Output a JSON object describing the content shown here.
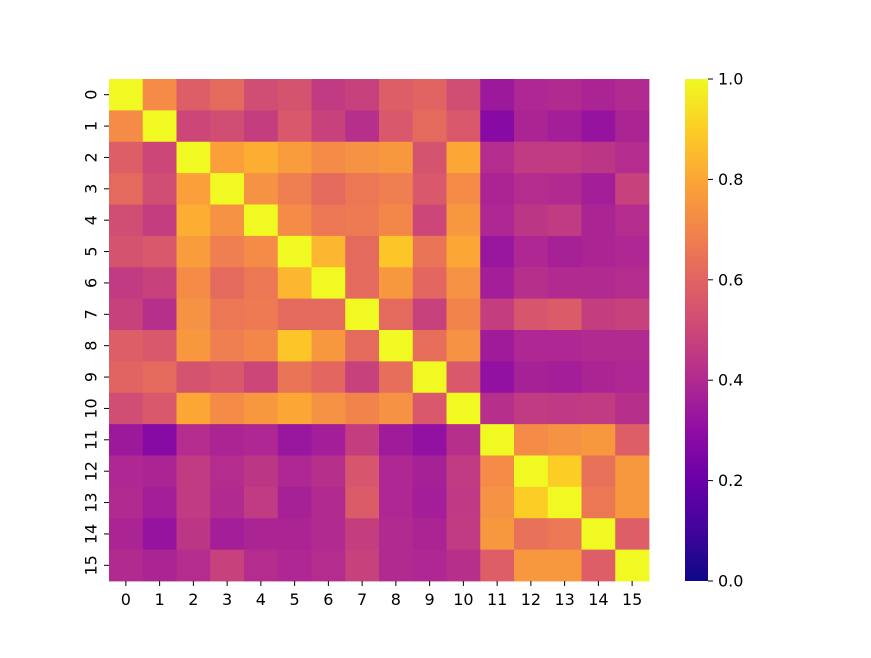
{
  "chart_data": {
    "type": "heatmap",
    "title": "",
    "xlabel": "",
    "ylabel": "",
    "x_labels": [
      "0",
      "1",
      "2",
      "3",
      "4",
      "5",
      "6",
      "7",
      "8",
      "9",
      "10",
      "11",
      "12",
      "13",
      "14",
      "15"
    ],
    "y_labels": [
      "0",
      "1",
      "2",
      "3",
      "4",
      "5",
      "6",
      "7",
      "8",
      "9",
      "10",
      "11",
      "12",
      "13",
      "14",
      "15"
    ],
    "values": [
      [
        1.0,
        0.72,
        0.58,
        0.62,
        0.52,
        0.54,
        0.46,
        0.48,
        0.58,
        0.6,
        0.52,
        0.34,
        0.39,
        0.4,
        0.38,
        0.4
      ],
      [
        0.72,
        1.0,
        0.5,
        0.52,
        0.47,
        0.56,
        0.48,
        0.42,
        0.56,
        0.62,
        0.56,
        0.28,
        0.38,
        0.36,
        0.32,
        0.38
      ],
      [
        0.58,
        0.5,
        1.0,
        0.78,
        0.82,
        0.77,
        0.72,
        0.74,
        0.76,
        0.54,
        0.8,
        0.41,
        0.46,
        0.46,
        0.44,
        0.41
      ],
      [
        0.62,
        0.52,
        0.78,
        1.0,
        0.74,
        0.68,
        0.62,
        0.66,
        0.68,
        0.56,
        0.72,
        0.38,
        0.41,
        0.4,
        0.36,
        0.48
      ],
      [
        0.52,
        0.47,
        0.82,
        0.74,
        1.0,
        0.72,
        0.66,
        0.67,
        0.71,
        0.5,
        0.76,
        0.39,
        0.44,
        0.46,
        0.38,
        0.41
      ],
      [
        0.54,
        0.56,
        0.77,
        0.68,
        0.72,
        1.0,
        0.84,
        0.62,
        0.88,
        0.65,
        0.8,
        0.33,
        0.39,
        0.37,
        0.38,
        0.39
      ],
      [
        0.46,
        0.48,
        0.72,
        0.62,
        0.66,
        0.84,
        1.0,
        0.62,
        0.76,
        0.61,
        0.74,
        0.36,
        0.42,
        0.4,
        0.4,
        0.41
      ],
      [
        0.48,
        0.42,
        0.74,
        0.66,
        0.67,
        0.62,
        0.62,
        1.0,
        0.62,
        0.48,
        0.7,
        0.47,
        0.55,
        0.57,
        0.47,
        0.48
      ],
      [
        0.58,
        0.56,
        0.76,
        0.68,
        0.71,
        0.88,
        0.76,
        0.62,
        1.0,
        0.63,
        0.74,
        0.35,
        0.39,
        0.39,
        0.4,
        0.4
      ],
      [
        0.6,
        0.62,
        0.54,
        0.56,
        0.5,
        0.65,
        0.61,
        0.48,
        0.63,
        1.0,
        0.56,
        0.31,
        0.37,
        0.36,
        0.38,
        0.39
      ],
      [
        0.52,
        0.56,
        0.8,
        0.72,
        0.76,
        0.8,
        0.74,
        0.7,
        0.74,
        0.56,
        1.0,
        0.42,
        0.46,
        0.45,
        0.46,
        0.42
      ],
      [
        0.34,
        0.28,
        0.41,
        0.38,
        0.39,
        0.33,
        0.36,
        0.47,
        0.35,
        0.31,
        0.42,
        1.0,
        0.72,
        0.74,
        0.76,
        0.58
      ],
      [
        0.39,
        0.38,
        0.46,
        0.41,
        0.44,
        0.39,
        0.42,
        0.55,
        0.39,
        0.37,
        0.46,
        0.72,
        1.0,
        0.9,
        0.64,
        0.76
      ],
      [
        0.4,
        0.36,
        0.46,
        0.4,
        0.46,
        0.37,
        0.4,
        0.57,
        0.39,
        0.36,
        0.45,
        0.74,
        0.9,
        1.0,
        0.66,
        0.76
      ],
      [
        0.38,
        0.32,
        0.44,
        0.36,
        0.38,
        0.38,
        0.4,
        0.47,
        0.4,
        0.38,
        0.46,
        0.76,
        0.64,
        0.66,
        1.0,
        0.58
      ],
      [
        0.4,
        0.38,
        0.41,
        0.48,
        0.41,
        0.39,
        0.41,
        0.48,
        0.4,
        0.39,
        0.42,
        0.58,
        0.76,
        0.76,
        0.58,
        1.0
      ]
    ],
    "vmin": 0.0,
    "vmax": 1.0,
    "colormap": "plasma",
    "colorbar_ticks": [
      "0.0",
      "0.2",
      "0.4",
      "0.6",
      "0.8",
      "1.0"
    ],
    "grid": false,
    "legend": "colorbar right"
  }
}
